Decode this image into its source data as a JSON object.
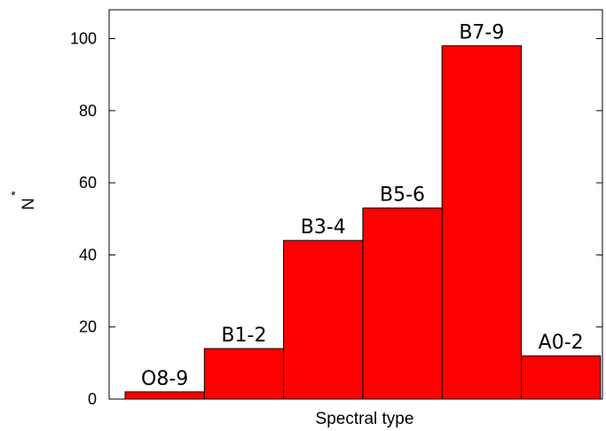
{
  "chart_data": {
    "type": "bar",
    "categories": [
      "O8-9",
      "B1-2",
      "B3-4",
      "B5-6",
      "B7-9",
      "A0-2"
    ],
    "values": [
      2,
      14,
      44,
      53,
      98,
      12
    ],
    "bar_labels": [
      "O8-9",
      "B1-2",
      "B3-4",
      "B5-6",
      "B7-9",
      "A0-2"
    ],
    "xlabel": "Spectral type",
    "ylabel": "N",
    "ylabel_superscript": "*",
    "ylim": [
      0,
      108
    ],
    "yticks": [
      0,
      20,
      40,
      60,
      80,
      100
    ],
    "bar_color": "#ff0000",
    "grid": false
  }
}
